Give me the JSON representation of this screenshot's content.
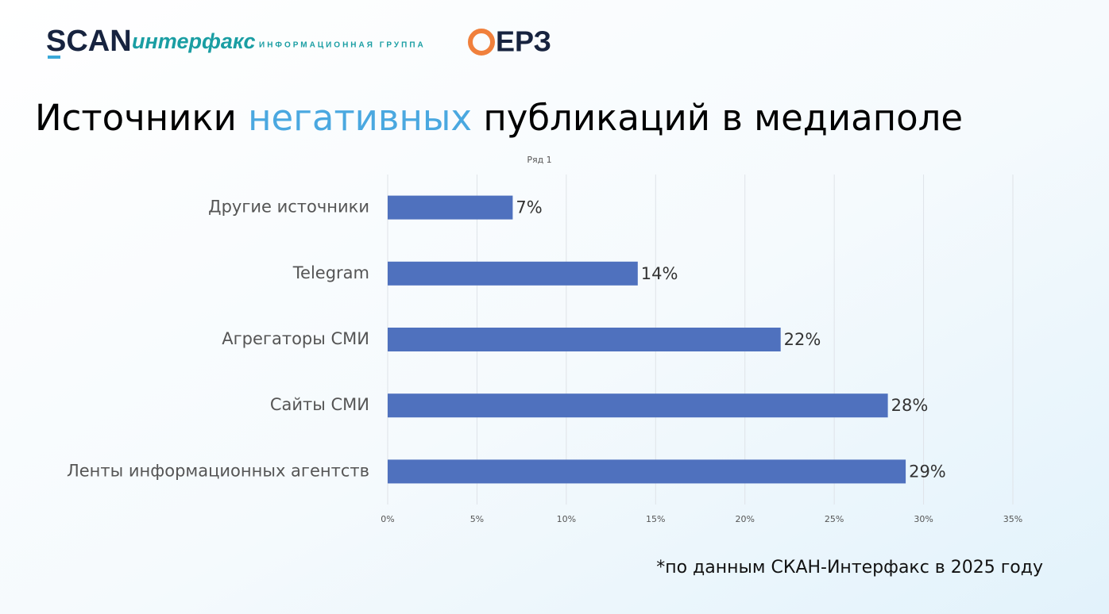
{
  "header": {
    "logos": [
      "SCAN",
      "интерфакс",
      "ИНФОРМАЦИОННАЯ ГРУППА",
      "ЕРЗ"
    ],
    "title_parts": [
      "Источники ",
      "негативных",
      " публикаций в медиаполе"
    ]
  },
  "chart_data": {
    "type": "hbar",
    "categories": [
      "Другие источники",
      "Telegram",
      "Агрегаторы СМИ",
      "Сайты СМИ",
      "Ленты информационных агентств"
    ],
    "series": [
      {
        "name": "Ряд 1",
        "color": "#4f71be",
        "values": [
          7,
          14,
          22,
          28,
          29
        ],
        "value_labels": [
          "7%",
          "14%",
          "22%",
          "28%",
          "29%"
        ]
      }
    ],
    "xlim": [
      0,
      35
    ],
    "xticks": [
      {
        "value": 0,
        "label": "0%"
      },
      {
        "value": 5,
        "label": "5%"
      },
      {
        "value": 10,
        "label": "10%"
      },
      {
        "value": 15,
        "label": "15%"
      },
      {
        "value": 20,
        "label": "20%"
      },
      {
        "value": 25,
        "label": "25%"
      },
      {
        "value": 30,
        "label": "30%"
      },
      {
        "value": 35,
        "label": "35%"
      }
    ],
    "grid": true
  },
  "footnote": "*по данным СКАН-Интерфакс в 2025 году"
}
